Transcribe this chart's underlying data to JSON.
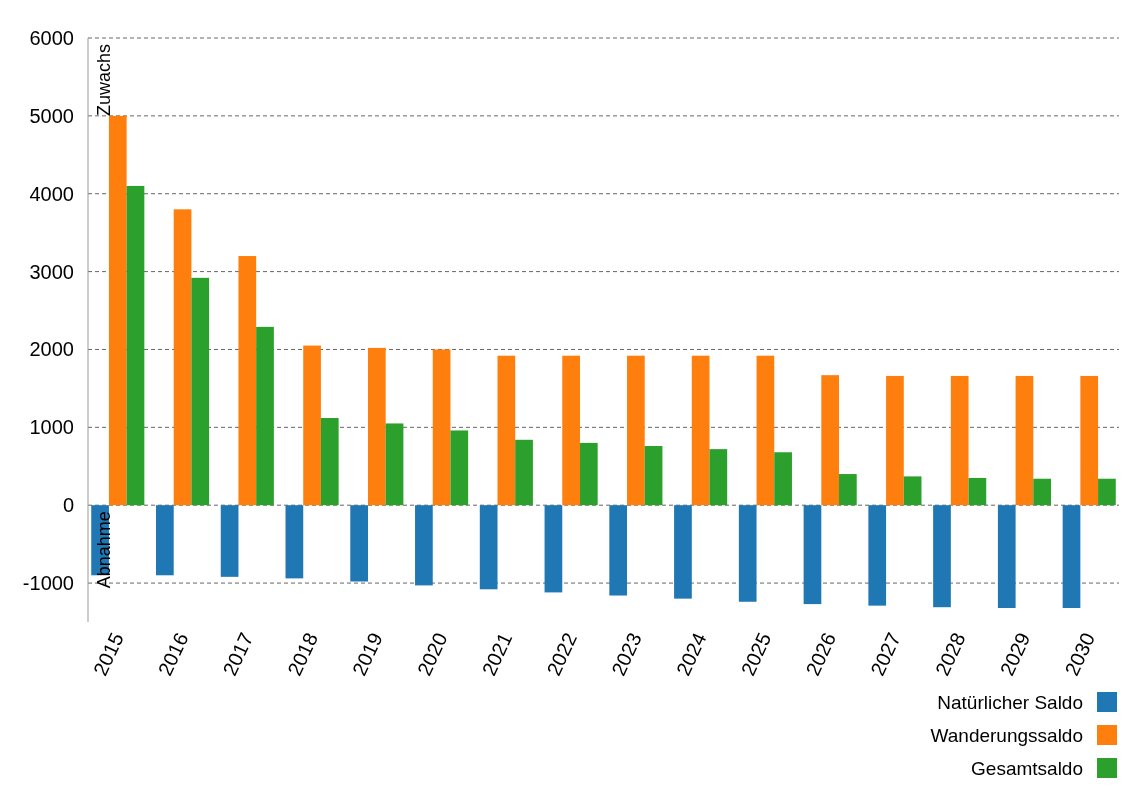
{
  "chart_data": {
    "type": "bar",
    "categories": [
      "2015",
      "2016",
      "2017",
      "2018",
      "2019",
      "2020",
      "2021",
      "2022",
      "2023",
      "2024",
      "2025",
      "2026",
      "2027",
      "2028",
      "2029",
      "2030"
    ],
    "series": [
      {
        "name": "Natürlicher Saldo",
        "color": "#1f77b4",
        "values": [
          -900,
          -900,
          -920,
          -940,
          -980,
          -1030,
          -1080,
          -1120,
          -1160,
          -1200,
          -1240,
          -1270,
          -1290,
          -1310,
          -1320,
          -1320
        ]
      },
      {
        "name": "Wanderungssaldo",
        "color": "#ff7f0e",
        "values": [
          5000,
          3800,
          3200,
          2050,
          2020,
          2000,
          1920,
          1920,
          1920,
          1920,
          1920,
          1670,
          1660,
          1660,
          1660,
          1660
        ]
      },
      {
        "name": "Gesamtsaldo",
        "color": "#2ca02c",
        "values": [
          4100,
          2920,
          2290,
          1120,
          1050,
          960,
          840,
          800,
          760,
          720,
          680,
          400,
          370,
          350,
          340,
          340
        ]
      }
    ],
    "ylim": [
      -1500,
      6000
    ],
    "yticks": [
      -1000,
      0,
      1000,
      2000,
      3000,
      4000,
      5000,
      6000
    ],
    "grid": "y",
    "legend": "bottom right",
    "annotations": [
      "Zuwachs",
      "Abnahme"
    ]
  }
}
